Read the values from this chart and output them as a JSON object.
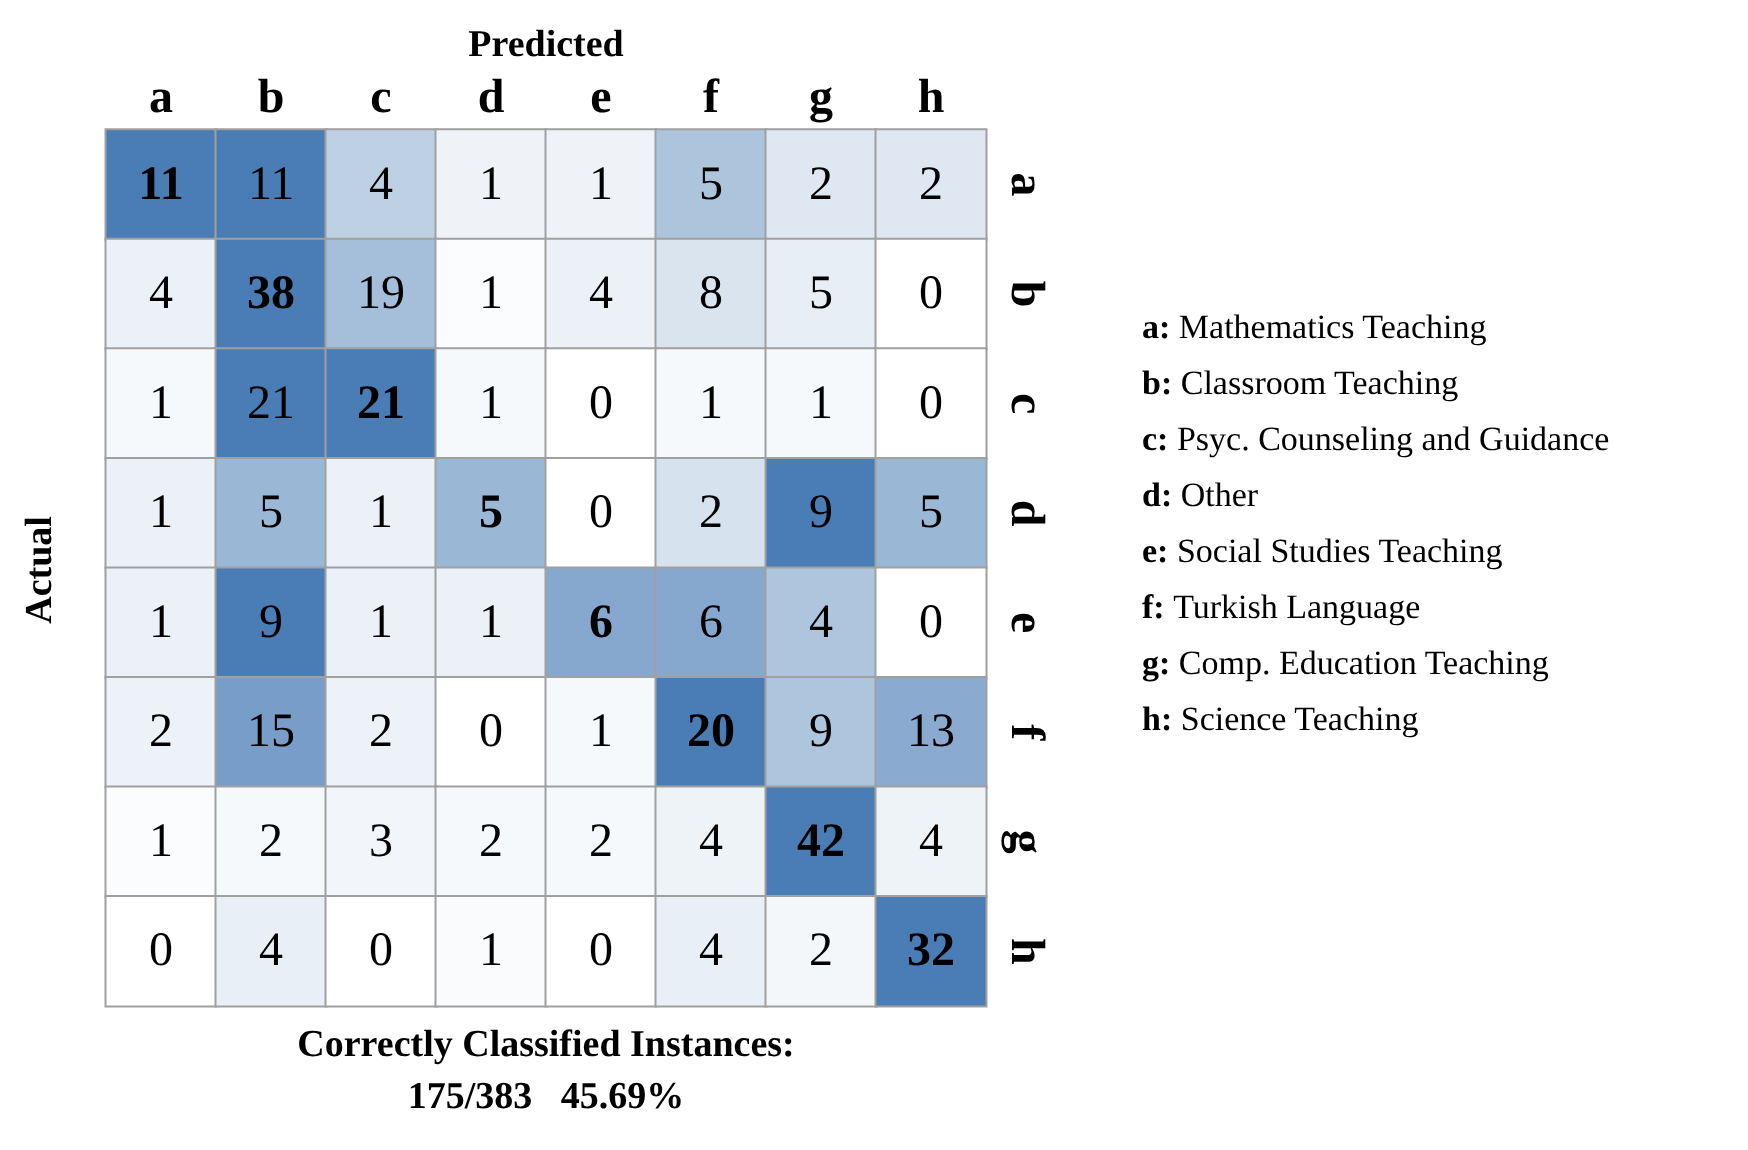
{
  "chart_data": {
    "type": "heatmap",
    "data_labels": true,
    "xlabel": "Predicted",
    "ylabel": "Actual",
    "color": "#4a7cb5",
    "categories": [
      "a",
      "b",
      "c",
      "d",
      "e",
      "f",
      "g",
      "h"
    ],
    "y_categories": [
      "a",
      "b",
      "c",
      "d",
      "e",
      "f",
      "g",
      "h"
    ],
    "cells": [
      [
        11,
        11,
        4,
        1,
        1,
        5,
        2,
        2
      ],
      [
        4,
        38,
        19,
        1,
        4,
        8,
        5,
        0
      ],
      [
        1,
        21,
        21,
        1,
        0,
        1,
        1,
        0
      ],
      [
        1,
        5,
        1,
        5,
        0,
        2,
        9,
        5
      ],
      [
        1,
        9,
        1,
        1,
        6,
        6,
        4,
        0
      ],
      [
        2,
        15,
        2,
        0,
        1,
        20,
        9,
        13
      ],
      [
        1,
        2,
        3,
        2,
        2,
        4,
        42,
        4
      ],
      [
        0,
        4,
        0,
        1,
        0,
        4,
        2,
        32
      ]
    ],
    "annotations": [
      "a: Mathematics Teaching",
      "b: Classroom Teaching",
      "c: Psyc. Counseling and Guidance",
      "d: Other",
      "e: Social Studies Teaching",
      "f: Turkish Language",
      "g: Comp. Education Teaching",
      "h: Science Teaching",
      "Correctly Classified Instances:",
      "175/383   45.69%"
    ]
  }
}
